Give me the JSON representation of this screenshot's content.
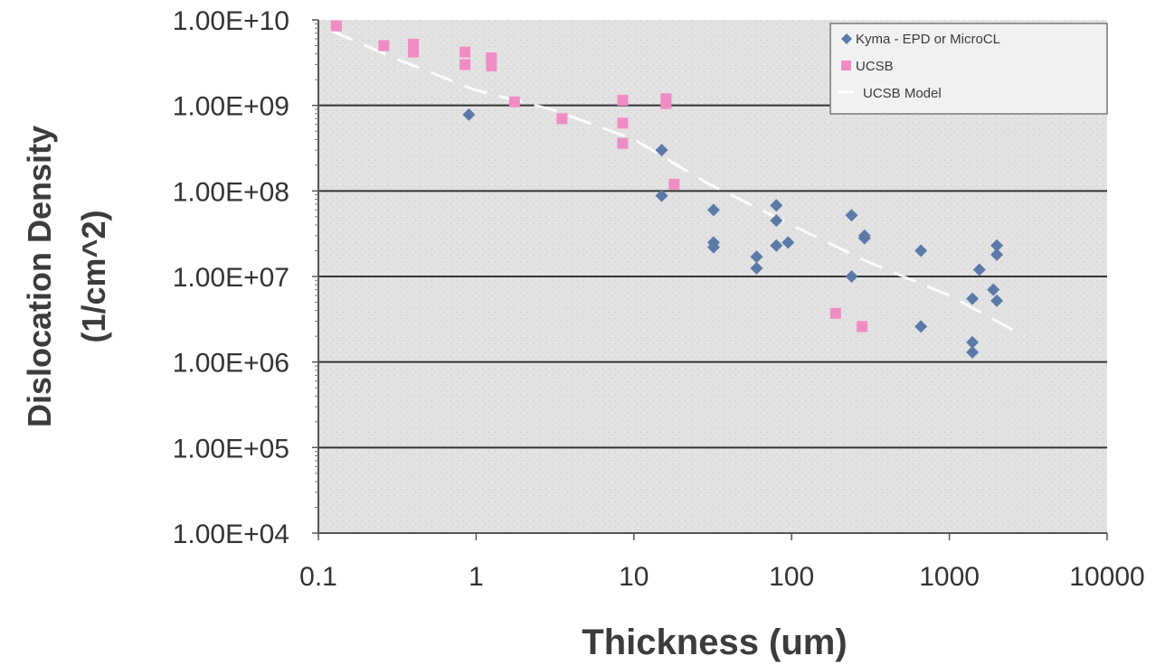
{
  "chart_data": {
    "type": "scatter",
    "title": "",
    "xlabel": "Thickness (um)",
    "ylabel_lines": [
      "Dislocation Density",
      "(1/cm^2)"
    ],
    "x_scale": "log",
    "y_scale": "log",
    "xlim": [
      0.1,
      10000
    ],
    "ylim": [
      10000,
      10000000000
    ],
    "x_tick_labels": [
      "0.1",
      "1",
      "10",
      "100",
      "1000",
      "10000"
    ],
    "y_tick_labels": [
      "1.00E+04",
      "1.00E+05",
      "1.00E+06",
      "1.00E+07",
      "1.00E+08",
      "1.00E+09",
      "1.00E+10"
    ],
    "grid": "horizontal major lines",
    "legend_position": "top-right",
    "series": [
      {
        "name": "Kyma - EPD or MicroCL",
        "marker": "diamond",
        "color": "#5b7aa8",
        "points": [
          [
            0.9,
            780000000
          ],
          [
            15,
            300000000
          ],
          [
            15,
            88000000
          ],
          [
            32,
            60000000
          ],
          [
            32,
            25000000
          ],
          [
            32,
            22000000
          ],
          [
            60,
            17000000
          ],
          [
            60,
            12500000
          ],
          [
            80,
            68000000
          ],
          [
            80,
            45000000
          ],
          [
            80,
            23000000
          ],
          [
            95,
            25000000
          ],
          [
            240,
            52000000
          ],
          [
            240,
            10000000
          ],
          [
            290,
            30000000
          ],
          [
            290,
            28000000
          ],
          [
            660,
            20000000
          ],
          [
            660,
            2600000
          ],
          [
            1400,
            5500000
          ],
          [
            1400,
            1700000
          ],
          [
            1400,
            1300000
          ],
          [
            1550,
            12000000
          ],
          [
            1900,
            7000000
          ],
          [
            2000,
            23000000
          ],
          [
            2000,
            18000000
          ],
          [
            2000,
            5200000
          ]
        ]
      },
      {
        "name": "UCSB",
        "marker": "square",
        "color": "#f08cc4",
        "points": [
          [
            0.13,
            8500000000
          ],
          [
            0.26,
            5000000000
          ],
          [
            0.4,
            5200000000
          ],
          [
            0.4,
            4200000000
          ],
          [
            0.85,
            4200000000
          ],
          [
            0.85,
            3000000000
          ],
          [
            1.25,
            3600000000
          ],
          [
            1.25,
            2900000000
          ],
          [
            1.75,
            1100000000
          ],
          [
            3.5,
            700000000
          ],
          [
            8.5,
            1150000000
          ],
          [
            8.5,
            620000000
          ],
          [
            8.5,
            360000000
          ],
          [
            16,
            1200000000
          ],
          [
            16,
            1050000000
          ],
          [
            18,
            120000000
          ],
          [
            190,
            3700000
          ],
          [
            280,
            2600000
          ]
        ]
      },
      {
        "name": "UCSB Model",
        "marker": "line",
        "color": "#ffffff",
        "points": [
          [
            0.12,
            7500000000
          ],
          [
            0.3,
            3600000000
          ],
          [
            1,
            1500000000
          ],
          [
            3,
            900000000
          ],
          [
            10,
            400000000
          ],
          [
            30,
            120000000
          ],
          [
            100,
            40000000
          ],
          [
            300,
            15000000
          ],
          [
            1000,
            6000000
          ],
          [
            3000,
            2000000
          ]
        ]
      }
    ]
  }
}
